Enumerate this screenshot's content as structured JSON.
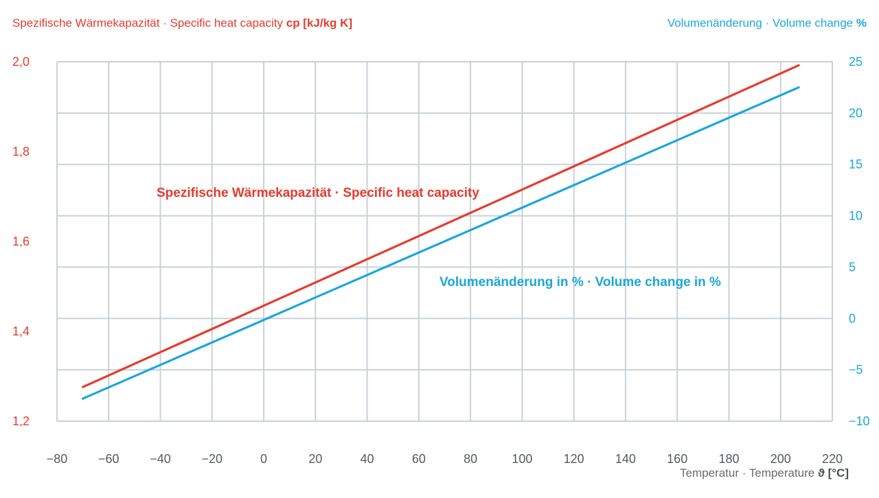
{
  "colors": {
    "cp": "#e63b2e",
    "volume": "#1aa7dc",
    "grid": "#c9d0d7",
    "xtick": "#555a60"
  },
  "titles": {
    "left_axis_text": "Spezifische Wärmekapazität · Specific heat capacity",
    "left_axis_unit": "cp [kJ/kg K]",
    "right_axis_text": "Volumenänderung · Volume change",
    "right_axis_unit": "%",
    "x_axis_text": "Temperatur · Temperature",
    "x_axis_unit": "ϑ [°C]"
  },
  "chart_data": {
    "type": "line",
    "x": [
      -70,
      207
    ],
    "xlim": [
      -80,
      220
    ],
    "x_ticks": [
      -80,
      -60,
      -40,
      -20,
      0,
      20,
      40,
      60,
      80,
      100,
      120,
      140,
      160,
      180,
      200,
      220
    ],
    "x_tick_labels": [
      "−80",
      "−60",
      "−40",
      "−20",
      "0",
      "20",
      "40",
      "60",
      "80",
      "100",
      "120",
      "140",
      "160",
      "180",
      "200",
      "220"
    ],
    "y_left_lim": [
      1.2,
      2.0
    ],
    "y_left_ticks": [
      1.2,
      1.4,
      1.6,
      1.8,
      2.0
    ],
    "y_left_tick_labels": [
      "1,2",
      "1,4",
      "1,6",
      "1,8",
      "2,0"
    ],
    "y_right_lim": [
      -10,
      25
    ],
    "y_right_ticks": [
      -10,
      -5,
      0,
      5,
      10,
      15,
      20,
      25
    ],
    "y_right_tick_labels": [
      "−10",
      "−5",
      "0",
      "5",
      "10",
      "15",
      "20",
      "25"
    ],
    "grid": true,
    "series": [
      {
        "name": "Spezifische Wärmekapazität · Specific heat capacity",
        "axis": "left",
        "values": [
          1.276,
          1.992
        ]
      },
      {
        "name": "Volumenänderung in % · Volume change in %",
        "axis": "right",
        "values": [
          -7.8,
          22.5
        ]
      }
    ]
  }
}
